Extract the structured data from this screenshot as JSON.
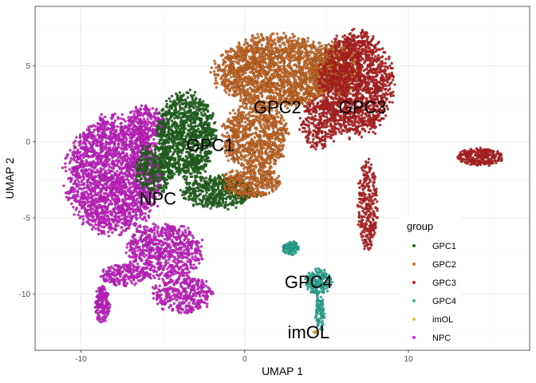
{
  "chart_data": {
    "type": "scatter",
    "xlabel": "UMAP 1",
    "ylabel": "UMAP 2",
    "xlim": [
      -12.8,
      17.4
    ],
    "ylim": [
      -13.7,
      8.9
    ],
    "x_ticks": [
      -10,
      0,
      10
    ],
    "y_ticks": [
      5,
      0,
      -5,
      -10
    ],
    "x_tick_labels": [
      "-10",
      "0",
      "10"
    ],
    "y_tick_labels": [
      "5",
      "0",
      "-5",
      "-10"
    ],
    "grid": true,
    "legend": {
      "title": "group",
      "position": "right",
      "entries": [
        {
          "name": "GPC1",
          "color": "#1f6f1a"
        },
        {
          "name": "GPC2",
          "color": "#e0701f"
        },
        {
          "name": "GPC3",
          "color": "#cc1f1f"
        },
        {
          "name": "GPC4",
          "color": "#26c0a8"
        },
        {
          "name": "imOL",
          "color": "#e8c020"
        },
        {
          "name": "NPC",
          "color": "#e01ee0"
        }
      ]
    },
    "cluster_labels": [
      {
        "text": "GPC2",
        "x": 2.0,
        "y": 2.3
      },
      {
        "text": "GPC3",
        "x": 7.2,
        "y": 2.3
      },
      {
        "text": "GPC1",
        "x": -2.1,
        "y": -0.2
      },
      {
        "text": "NPC",
        "x": -5.3,
        "y": -3.7
      },
      {
        "text": "GPC4",
        "x": 3.9,
        "y": -9.2
      },
      {
        "text": "imOL",
        "x": 3.9,
        "y": -12.5
      }
    ],
    "series": [
      {
        "name": "NPC",
        "regions": [
          {
            "cx": -8.0,
            "cy": -2.2,
            "rx": 2.9,
            "ry": 3.8,
            "n": 2200
          },
          {
            "cx": -4.9,
            "cy": -7.2,
            "rx": 2.3,
            "ry": 1.8,
            "n": 700
          },
          {
            "cx": -3.8,
            "cy": -10.0,
            "rx": 1.8,
            "ry": 1.3,
            "n": 350
          },
          {
            "cx": -7.3,
            "cy": -8.8,
            "rx": 1.5,
            "ry": 0.7,
            "n": 200
          },
          {
            "cx": -8.7,
            "cy": -10.7,
            "rx": 0.45,
            "ry": 1.2,
            "n": 160
          },
          {
            "cx": -6.0,
            "cy": 1.2,
            "rx": 1.2,
            "ry": 1.2,
            "n": 250
          }
        ]
      },
      {
        "name": "GPC1",
        "regions": [
          {
            "cx": -3.6,
            "cy": 0.4,
            "rx": 1.8,
            "ry": 2.8,
            "n": 1100
          },
          {
            "cx": -1.6,
            "cy": -3.3,
            "rx": 2.2,
            "ry": 1.1,
            "n": 500
          },
          {
            "cx": -5.5,
            "cy": -1.8,
            "rx": 1.2,
            "ry": 1.6,
            "n": 300
          }
        ]
      },
      {
        "name": "GPC2",
        "regions": [
          {
            "cx": 2.0,
            "cy": 4.6,
            "rx": 3.8,
            "ry": 2.4,
            "n": 1900
          },
          {
            "cx": 0.6,
            "cy": 0.3,
            "rx": 2.0,
            "ry": 2.2,
            "n": 800
          },
          {
            "cx": 0.4,
            "cy": -2.7,
            "rx": 1.8,
            "ry": 1.0,
            "n": 350
          },
          {
            "cx": 5.5,
            "cy": 4.8,
            "rx": 1.6,
            "ry": 1.8,
            "n": 500
          }
        ]
      },
      {
        "name": "GPC3",
        "regions": [
          {
            "cx": 6.8,
            "cy": 3.8,
            "rx": 2.2,
            "ry": 3.4,
            "n": 1500
          },
          {
            "cx": 4.6,
            "cy": 1.2,
            "rx": 1.2,
            "ry": 1.6,
            "n": 300
          },
          {
            "cx": 7.5,
            "cy": -4.2,
            "rx": 0.6,
            "ry": 3.0,
            "n": 280
          },
          {
            "cx": 14.4,
            "cy": -1.0,
            "rx": 1.4,
            "ry": 0.55,
            "n": 240
          }
        ]
      },
      {
        "name": "GPC4",
        "regions": [
          {
            "cx": 2.8,
            "cy": -7.0,
            "rx": 0.5,
            "ry": 0.45,
            "n": 90
          },
          {
            "cx": 4.5,
            "cy": -9.2,
            "rx": 0.8,
            "ry": 0.9,
            "n": 170
          },
          {
            "cx": 4.6,
            "cy": -11.3,
            "rx": 0.3,
            "ry": 1.1,
            "n": 80
          }
        ]
      },
      {
        "name": "imOL",
        "regions": [
          {
            "cx": 4.4,
            "cy": -12.5,
            "rx": 0.15,
            "ry": 0.1,
            "n": 4
          }
        ]
      }
    ]
  }
}
